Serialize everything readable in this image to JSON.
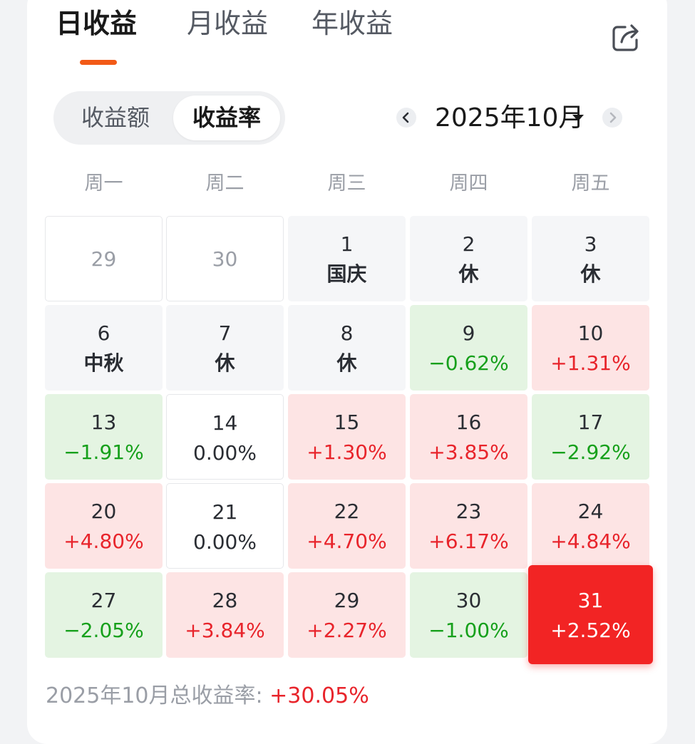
{
  "tabs": {
    "daily": "日收益",
    "monthly": "月收益",
    "yearly": "年收益"
  },
  "segment": {
    "amount": "收益额",
    "rate": "收益率"
  },
  "month": "2025年10月",
  "weekdays": [
    "周一",
    "周二",
    "周三",
    "周四",
    "周五"
  ],
  "cells": [
    {
      "day": "29",
      "sub": "",
      "state": "outside"
    },
    {
      "day": "30",
      "sub": "",
      "state": "outside"
    },
    {
      "day": "1",
      "sub": "国庆",
      "state": "holiday"
    },
    {
      "day": "2",
      "sub": "休",
      "state": "holiday"
    },
    {
      "day": "3",
      "sub": "休",
      "state": "holiday"
    },
    {
      "day": "6",
      "sub": "中秋",
      "state": "holiday"
    },
    {
      "day": "7",
      "sub": "休",
      "state": "holiday"
    },
    {
      "day": "8",
      "sub": "休",
      "state": "holiday"
    },
    {
      "day": "9",
      "sub": "−0.62%",
      "state": "down"
    },
    {
      "day": "10",
      "sub": "+1.31%",
      "state": "up"
    },
    {
      "day": "13",
      "sub": "−1.91%",
      "state": "down"
    },
    {
      "day": "14",
      "sub": "0.00%",
      "state": "flat"
    },
    {
      "day": "15",
      "sub": "+1.30%",
      "state": "up"
    },
    {
      "day": "16",
      "sub": "+3.85%",
      "state": "up"
    },
    {
      "day": "17",
      "sub": "−2.92%",
      "state": "down"
    },
    {
      "day": "20",
      "sub": "+4.80%",
      "state": "up"
    },
    {
      "day": "21",
      "sub": "0.00%",
      "state": "flat"
    },
    {
      "day": "22",
      "sub": "+4.70%",
      "state": "up"
    },
    {
      "day": "23",
      "sub": "+6.17%",
      "state": "up"
    },
    {
      "day": "24",
      "sub": "+4.84%",
      "state": "up"
    },
    {
      "day": "27",
      "sub": "−2.05%",
      "state": "down"
    },
    {
      "day": "28",
      "sub": "+3.84%",
      "state": "up"
    },
    {
      "day": "29",
      "sub": "+2.27%",
      "state": "up"
    },
    {
      "day": "30",
      "sub": "−1.00%",
      "state": "down"
    },
    {
      "day": "31",
      "sub": "+2.52%",
      "state": "selected"
    }
  ],
  "summary": {
    "label": "2025年10月总收益率: ",
    "value": "+30.05%"
  },
  "colors": {
    "accent": "#f25a17",
    "up": "#e8242b",
    "down": "#16a01b",
    "selected": "#f22424"
  }
}
